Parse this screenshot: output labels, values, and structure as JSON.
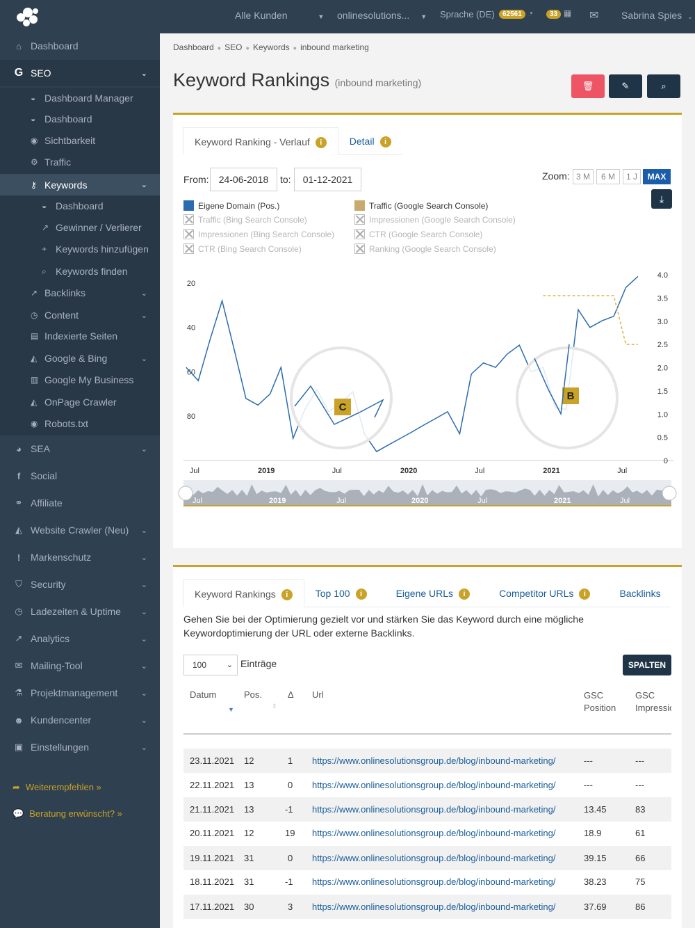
{
  "topbar": {
    "customers": "Alle Kunden",
    "project": "onlinesolutions...",
    "language": "Sprache (DE)",
    "badge_count_1": "62561",
    "badge_count_2": "33",
    "user": "Sabrina Spies"
  },
  "sidebar": {
    "dashboard": "Dashboard",
    "seo": "SEO",
    "seo_items": [
      "Dashboard Manager",
      "Dashboard",
      "Sichtbarkeit",
      "Traffic",
      "Keywords",
      "Dashboard",
      "Gewinner / Verlierer",
      "Keywords hinzufügen",
      "Keywords finden",
      "Backlinks",
      "Content",
      "Indexierte Seiten",
      "Google & Bing",
      "Google My Business",
      "OnPage Crawler",
      "Robots.txt"
    ],
    "main_items": [
      "SEA",
      "Social",
      "Affiliate",
      "Website Crawler (Neu)",
      "Markenschutz",
      "Security",
      "Ladezeiten & Uptime",
      "Analytics",
      "Mailing-Tool",
      "Projektmanagement",
      "Kundencenter",
      "Einstellungen"
    ],
    "recommend": "Weiterempfehlen »",
    "consulting": "Beratung erwünscht? »"
  },
  "breadcrumb": [
    "Dashboard",
    "SEO",
    "Keywords",
    "inbound marketing"
  ],
  "page": {
    "title": "Keyword Rankings",
    "subtitle": "(inbound marketing)"
  },
  "chart_card": {
    "tabs": [
      "Keyword Ranking - Verlauf",
      "Detail"
    ],
    "from_label": "From:",
    "from_value": "24-06-2018",
    "to_label": "to:",
    "to_value": "01-12-2021",
    "zoom_label": "Zoom:",
    "zoom_options": [
      "3 M",
      "6 M",
      "1 J",
      "MAX"
    ],
    "legend": [
      {
        "label": "Eigene Domain (Pos.)",
        "active": true,
        "color": "#2b6cb0"
      },
      {
        "label": "Traffic (Google Search Console)",
        "active": true,
        "color": "#c9a96e"
      },
      {
        "label": "Traffic (Bing Search Console)",
        "active": false
      },
      {
        "label": "Impressionen (Google Search Console)",
        "active": false
      },
      {
        "label": "Impressionen (Bing Search Console)",
        "active": false
      },
      {
        "label": "CTR (Google Search Console)",
        "active": false
      },
      {
        "label": "CTR (Bing Search Console)",
        "active": false
      },
      {
        "label": "Ranking (Google Search Console)",
        "active": false
      }
    ],
    "callouts": [
      "C",
      "B"
    ],
    "navigator_labels": [
      "Jul",
      "2019",
      "Jul",
      "2020",
      "Jul",
      "2021",
      "Jul"
    ]
  },
  "chart_data": {
    "type": "line",
    "x_ticks": [
      "Jul",
      "2019",
      "Jul",
      "2020",
      "Jul",
      "2021",
      "Jul"
    ],
    "y_left_ticks": [
      "20",
      "40",
      "60",
      "80"
    ],
    "y_right_ticks": [
      "4.0",
      "3.5",
      "3.0",
      "2.5",
      "2.0",
      "1.5",
      "1.0",
      "0.5",
      "0"
    ],
    "y_left_reversed": true,
    "y_left_range": [
      10,
      100
    ],
    "y_right_range": [
      0,
      4.0
    ],
    "series": [
      {
        "name": "Eigene Domain (Pos.)",
        "color": "#2b6cb0",
        "axis": "left",
        "x": [
          "2018-07",
          "2018-08",
          "2018-09",
          "2018-10",
          "2018-11",
          "2018-12",
          "2019-01",
          "2019-02",
          "2019-03",
          "2019-04",
          "2019-05",
          "2019-06",
          "2019-07",
          "2019-08",
          "2019-09",
          "2019-10",
          "2019-11",
          "2019-12",
          "2020-01",
          "2020-02",
          "2020-03",
          "2020-04",
          "2020-05",
          "2020-06",
          "2020-07",
          "2020-08",
          "2020-09",
          "2020-10",
          "2020-11",
          "2020-12",
          "2021-01",
          "2021-02",
          "2021-03",
          "2021-04",
          "2021-05",
          "2021-06",
          "2021-07",
          "2021-08",
          "2021-09"
        ],
        "values": [
          58,
          64,
          45,
          28,
          50,
          72,
          75,
          70,
          58,
          90,
          77,
          68,
          78,
          74,
          69,
          88,
          96,
          93,
          90,
          87,
          84,
          81,
          78,
          88,
          61,
          56,
          58,
          52,
          48,
          60,
          58,
          76,
          77,
          32,
          40,
          37,
          35,
          22,
          17
        ]
      },
      {
        "name": "Traffic (Google Search Console)",
        "color": "#e0b24a",
        "axis": "right",
        "dashed": true,
        "x": [
          "2021-01",
          "2021-03",
          "2021-05",
          "2021-07",
          "2021-08",
          "2021-09"
        ],
        "values": [
          3.55,
          3.55,
          3.55,
          3.55,
          2.5,
          2.5
        ]
      }
    ]
  },
  "table_card": {
    "tabs": [
      "Keyword Rankings",
      "Top 100",
      "Eigene URLs",
      "Competitor URLs",
      "Backlinks"
    ],
    "description": "Gehen Sie bei der Optimierung gezielt vor und stärken Sie das Keyword durch eine mögliche Keywordoptimierung der URL oder externe Backlinks.",
    "page_size": "100",
    "entries_label": "Einträge",
    "columns_button": "SPALTEN",
    "headers": [
      "Datum",
      "Pos.",
      "Δ",
      "Url",
      "GSC Position",
      "GSC Impressionen"
    ],
    "header_gsc_pos_1": "GSC",
    "header_gsc_pos_2": "Position",
    "header_gsc_imp_1": "GSC",
    "header_gsc_imp_2": "Impressio",
    "rows": [
      [
        "23.11.2021",
        "12",
        "1",
        "https://www.onlinesolutionsgroup.de/blog/inbound-marketing/",
        "---",
        "---"
      ],
      [
        "22.11.2021",
        "13",
        "0",
        "https://www.onlinesolutionsgroup.de/blog/inbound-marketing/",
        "---",
        "---"
      ],
      [
        "21.11.2021",
        "13",
        "-1",
        "https://www.onlinesolutionsgroup.de/blog/inbound-marketing/",
        "13.45",
        "83"
      ],
      [
        "20.11.2021",
        "12",
        "19",
        "https://www.onlinesolutionsgroup.de/blog/inbound-marketing/",
        "18.9",
        "61"
      ],
      [
        "19.11.2021",
        "31",
        "0",
        "https://www.onlinesolutionsgroup.de/blog/inbound-marketing/",
        "39.15",
        "66"
      ],
      [
        "18.11.2021",
        "31",
        "-1",
        "https://www.onlinesolutionsgroup.de/blog/inbound-marketing/",
        "38.23",
        "75"
      ],
      [
        "17.11.2021",
        "30",
        "3",
        "https://www.onlinesolutionsgroup.de/blog/inbound-marketing/",
        "37.69",
        "86"
      ]
    ]
  }
}
